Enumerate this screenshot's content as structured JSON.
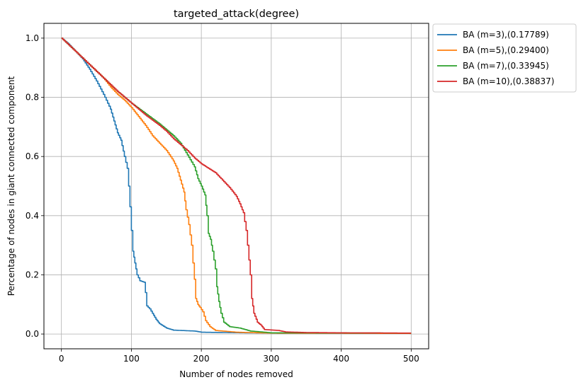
{
  "chart_data": {
    "type": "line",
    "title": "targeted_attack(degree)",
    "xlabel": "Number of nodes removed",
    "ylabel": "Percentage of nodes in giant connected component",
    "xlim": [
      -25,
      525
    ],
    "ylim": [
      -0.05,
      1.05
    ],
    "xticks": [
      0,
      100,
      200,
      300,
      400,
      500
    ],
    "yticks": [
      0.0,
      0.2,
      0.4,
      0.6,
      0.8,
      1.0
    ],
    "xtick_labels": [
      "0",
      "100",
      "200",
      "300",
      "400",
      "500"
    ],
    "ytick_labels": [
      "0.0",
      "0.2",
      "0.4",
      "0.6",
      "0.8",
      "1.0"
    ],
    "grid": true,
    "legend_position": "outside-top-right",
    "series": [
      {
        "name": "BA (m=3),(0.17789)",
        "color": "#1f77b4",
        "points": [
          [
            0,
            1.0
          ],
          [
            10,
            0.98
          ],
          [
            20,
            0.955
          ],
          [
            30,
            0.93
          ],
          [
            40,
            0.895
          ],
          [
            50,
            0.855
          ],
          [
            60,
            0.81
          ],
          [
            70,
            0.76
          ],
          [
            75,
            0.72
          ],
          [
            80,
            0.68
          ],
          [
            85,
            0.655
          ],
          [
            90,
            0.6
          ],
          [
            94,
            0.56
          ],
          [
            96,
            0.5
          ],
          [
            98,
            0.43
          ],
          [
            100,
            0.35
          ],
          [
            102,
            0.28
          ],
          [
            105,
            0.24
          ],
          [
            108,
            0.2
          ],
          [
            112,
            0.18
          ],
          [
            118,
            0.175
          ],
          [
            120,
            0.14
          ],
          [
            122,
            0.095
          ],
          [
            126,
            0.085
          ],
          [
            130,
            0.07
          ],
          [
            135,
            0.05
          ],
          [
            140,
            0.035
          ],
          [
            150,
            0.02
          ],
          [
            160,
            0.013
          ],
          [
            190,
            0.01
          ],
          [
            200,
            0.006
          ],
          [
            300,
            0.003
          ],
          [
            500,
            0.002
          ]
        ]
      },
      {
        "name": "BA (m=5),(0.29400)",
        "color": "#ff7f0e",
        "points": [
          [
            0,
            1.0
          ],
          [
            20,
            0.955
          ],
          [
            40,
            0.91
          ],
          [
            60,
            0.865
          ],
          [
            70,
            0.835
          ],
          [
            80,
            0.81
          ],
          [
            90,
            0.79
          ],
          [
            100,
            0.765
          ],
          [
            110,
            0.735
          ],
          [
            120,
            0.705
          ],
          [
            130,
            0.67
          ],
          [
            140,
            0.645
          ],
          [
            150,
            0.62
          ],
          [
            160,
            0.585
          ],
          [
            165,
            0.56
          ],
          [
            170,
            0.52
          ],
          [
            175,
            0.48
          ],
          [
            178,
            0.42
          ],
          [
            182,
            0.37
          ],
          [
            186,
            0.3
          ],
          [
            188,
            0.24
          ],
          [
            190,
            0.185
          ],
          [
            192,
            0.12
          ],
          [
            195,
            0.1
          ],
          [
            198,
            0.09
          ],
          [
            202,
            0.075
          ],
          [
            206,
            0.045
          ],
          [
            212,
            0.025
          ],
          [
            220,
            0.012
          ],
          [
            250,
            0.006
          ],
          [
            300,
            0.003
          ],
          [
            500,
            0.002
          ]
        ]
      },
      {
        "name": "BA (m=7),(0.33945)",
        "color": "#2ca02c",
        "points": [
          [
            0,
            1.0
          ],
          [
            20,
            0.955
          ],
          [
            40,
            0.91
          ],
          [
            60,
            0.865
          ],
          [
            80,
            0.82
          ],
          [
            100,
            0.78
          ],
          [
            120,
            0.745
          ],
          [
            140,
            0.71
          ],
          [
            150,
            0.69
          ],
          [
            160,
            0.67
          ],
          [
            170,
            0.645
          ],
          [
            180,
            0.605
          ],
          [
            190,
            0.565
          ],
          [
            195,
            0.525
          ],
          [
            200,
            0.5
          ],
          [
            205,
            0.47
          ],
          [
            208,
            0.4
          ],
          [
            210,
            0.34
          ],
          [
            213,
            0.32
          ],
          [
            216,
            0.28
          ],
          [
            220,
            0.22
          ],
          [
            222,
            0.16
          ],
          [
            225,
            0.11
          ],
          [
            228,
            0.07
          ],
          [
            232,
            0.04
          ],
          [
            240,
            0.025
          ],
          [
            255,
            0.02
          ],
          [
            270,
            0.01
          ],
          [
            300,
            0.004
          ],
          [
            500,
            0.003
          ]
        ]
      },
      {
        "name": "BA (m=10),(0.38837)",
        "color": "#d62728",
        "points": [
          [
            0,
            1.0
          ],
          [
            20,
            0.955
          ],
          [
            40,
            0.91
          ],
          [
            60,
            0.865
          ],
          [
            80,
            0.82
          ],
          [
            100,
            0.78
          ],
          [
            120,
            0.74
          ],
          [
            140,
            0.705
          ],
          [
            150,
            0.685
          ],
          [
            160,
            0.66
          ],
          [
            170,
            0.64
          ],
          [
            180,
            0.62
          ],
          [
            190,
            0.595
          ],
          [
            200,
            0.575
          ],
          [
            210,
            0.56
          ],
          [
            220,
            0.545
          ],
          [
            230,
            0.52
          ],
          [
            240,
            0.495
          ],
          [
            250,
            0.465
          ],
          [
            255,
            0.44
          ],
          [
            260,
            0.41
          ],
          [
            264,
            0.35
          ],
          [
            266,
            0.3
          ],
          [
            268,
            0.25
          ],
          [
            270,
            0.2
          ],
          [
            272,
            0.12
          ],
          [
            275,
            0.07
          ],
          [
            280,
            0.04
          ],
          [
            285,
            0.03
          ],
          [
            290,
            0.015
          ],
          [
            310,
            0.012
          ],
          [
            320,
            0.007
          ],
          [
            350,
            0.005
          ],
          [
            400,
            0.004
          ],
          [
            500,
            0.003
          ]
        ]
      }
    ]
  }
}
